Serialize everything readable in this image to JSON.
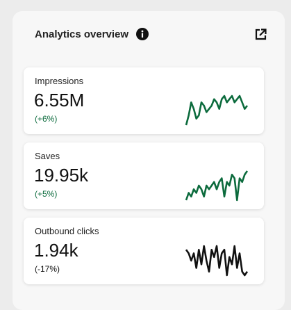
{
  "header": {
    "title": "Analytics overview"
  },
  "cards": [
    {
      "label": "Impressions",
      "value": "6.55M",
      "change": "(+6%)",
      "color": "#0c6b3d",
      "spark": [
        1,
        4,
        8,
        6,
        3,
        4,
        8,
        7,
        5,
        6,
        7,
        9,
        8,
        6,
        9,
        10,
        8,
        9,
        10,
        8,
        9,
        10,
        8,
        6,
        7
      ]
    },
    {
      "label": "Saves",
      "value": "19.95k",
      "change": "(+5%)",
      "color": "#0c6b3d",
      "spark": [
        1,
        3,
        2,
        4,
        3,
        5,
        4,
        2,
        5,
        4,
        5,
        6,
        4,
        6,
        7,
        2,
        6,
        5,
        8,
        7,
        1,
        7,
        6,
        8,
        9
      ]
    },
    {
      "label": "Outbound clicks",
      "value": "1.94k",
      "change": "(-17%)",
      "color": "#111111",
      "spark": [
        8,
        7,
        5,
        7,
        3,
        8,
        4,
        9,
        5,
        2,
        8,
        6,
        9,
        3,
        7,
        8,
        1,
        6,
        4,
        9,
        3,
        7,
        2,
        1,
        2
      ]
    }
  ]
}
